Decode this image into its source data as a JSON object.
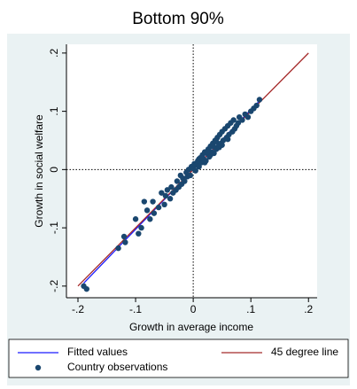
{
  "chart_data": {
    "type": "scatter",
    "title": "Bottom 90%",
    "xlabel": "Growth in average income",
    "ylabel": "Growth in social welfare",
    "xlim": [
      -0.22,
      0.215
    ],
    "ylim": [
      -0.22,
      0.215
    ],
    "xticks": [
      {
        "value": -0.2,
        "label": "-.2"
      },
      {
        "value": -0.1,
        "label": "-.1"
      },
      0,
      {
        "value": 0.1,
        "label": ".1"
      },
      {
        "value": 0.2,
        "label": ".2"
      }
    ],
    "yticks": [
      {
        "value": -0.2,
        "label": "-.2"
      },
      {
        "value": -0.1,
        "label": "-.1"
      },
      0,
      {
        "value": 0.1,
        "label": ".1"
      },
      {
        "value": 0.2,
        "label": ".2"
      }
    ],
    "xline": 0,
    "yline": 0,
    "series": [
      {
        "name": "Fitted values",
        "type": "line",
        "color": "#1a1aff",
        "x": [
          -0.19,
          0.115
        ],
        "values": [
          -0.195,
          0.118
        ]
      },
      {
        "name": "45 degree line",
        "type": "line",
        "color": "#a52a2a",
        "x": [
          -0.2,
          0.2
        ],
        "values": [
          -0.2,
          0.2
        ]
      },
      {
        "name": "Country observations",
        "type": "scatter",
        "color": "#1a476f",
        "x": [
          -0.19,
          -0.185,
          -0.12,
          -0.118,
          -0.13,
          -0.1,
          -0.095,
          -0.09,
          -0.085,
          -0.08,
          -0.075,
          -0.07,
          -0.068,
          -0.06,
          -0.055,
          -0.05,
          -0.048,
          -0.045,
          -0.04,
          -0.038,
          -0.035,
          -0.03,
          -0.028,
          -0.025,
          -0.022,
          -0.02,
          -0.018,
          -0.015,
          -0.012,
          -0.01,
          -0.008,
          -0.005,
          -0.003,
          0,
          0.002,
          0.004,
          0.006,
          0.008,
          0.01,
          0.012,
          0.014,
          0.016,
          0.018,
          0.02,
          0.022,
          0.024,
          0.026,
          0.028,
          0.03,
          0.032,
          0.034,
          0.036,
          0.038,
          0.04,
          0.042,
          0.044,
          0.046,
          0.048,
          0.05,
          0.052,
          0.055,
          0.058,
          0.06,
          0.062,
          0.065,
          0.068,
          0.07,
          0.072,
          0.075,
          0.078,
          0.08,
          0.085,
          0.09,
          0.095,
          0.1,
          0.105,
          0.11,
          0.115,
          0.03,
          0.04,
          0.05,
          0.02,
          0.01,
          0.06,
          0.045,
          0.035,
          0.025,
          0.015
        ],
        "values": [
          -0.2,
          -0.205,
          -0.115,
          -0.125,
          -0.135,
          -0.085,
          -0.11,
          -0.1,
          -0.055,
          -0.07,
          -0.085,
          -0.055,
          -0.075,
          -0.065,
          -0.04,
          -0.06,
          -0.045,
          -0.035,
          -0.05,
          -0.03,
          -0.04,
          -0.035,
          -0.02,
          -0.03,
          -0.01,
          -0.025,
          -0.015,
          -0.02,
          -0.005,
          -0.012,
          0.0,
          -0.01,
          0.005,
          0.002,
          0.01,
          -0.002,
          0.008,
          0.015,
          0.005,
          0.02,
          0.012,
          0.025,
          0.018,
          0.03,
          0.015,
          0.028,
          0.035,
          0.022,
          0.04,
          0.03,
          0.045,
          0.028,
          0.05,
          0.035,
          0.055,
          0.04,
          0.06,
          0.045,
          0.065,
          0.05,
          0.07,
          0.055,
          0.075,
          0.06,
          0.08,
          0.065,
          0.085,
          0.07,
          0.075,
          0.08,
          0.09,
          0.085,
          0.095,
          0.09,
          0.1,
          0.105,
          0.11,
          0.12,
          0.025,
          0.048,
          0.042,
          0.012,
          0.018,
          0.052,
          0.038,
          0.04,
          0.03,
          0.02
        ]
      }
    ]
  }
}
